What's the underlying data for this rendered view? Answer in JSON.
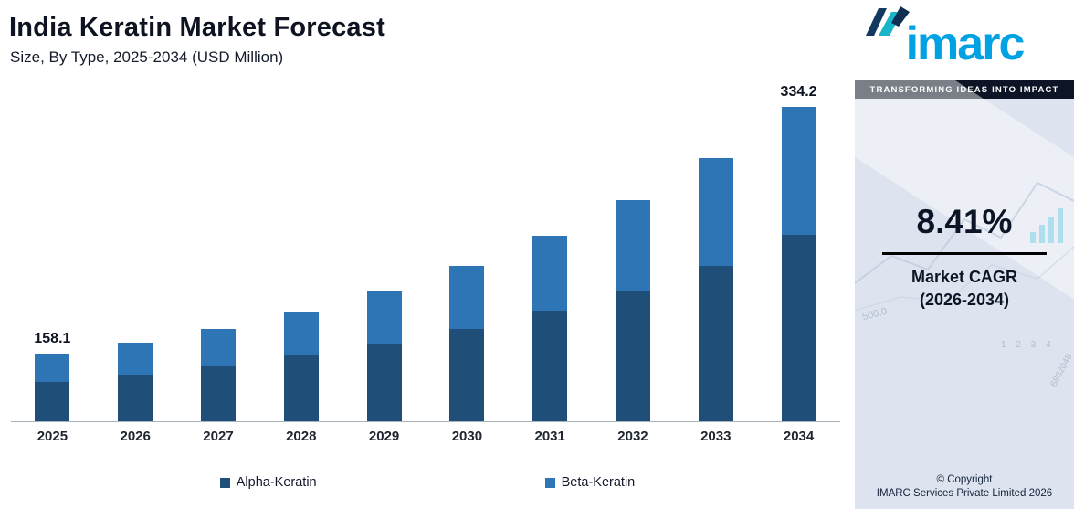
{
  "header": {
    "title": "India Keratin Market Forecast",
    "subtitle": "Size, By Type, 2025-2034 (USD Million)"
  },
  "chart_data": {
    "type": "bar",
    "stacked": true,
    "title": "India Keratin Market Forecast",
    "subtitle": "Size, By Type, 2025-2034 (USD Million)",
    "unit": "USD Million",
    "categories": [
      "2025",
      "2026",
      "2027",
      "2028",
      "2029",
      "2030",
      "2031",
      "2032",
      "2033",
      "2034"
    ],
    "series": [
      {
        "name": "Alpha-Keratin",
        "color": "#1f4e79",
        "values": [
          138.0,
          143.2,
          149.1,
          156.8,
          165.2,
          175.6,
          189.2,
          203.4,
          220.9,
          242.9
        ]
      },
      {
        "name": "Beta-Keratin",
        "color": "#2e75b6",
        "values": [
          20.1,
          22.9,
          26.9,
          31.6,
          38.0,
          45.3,
          53.6,
          64.7,
          77.0,
          91.3
        ]
      }
    ],
    "totals": [
      158.1,
      166.1,
      176.0,
      188.4,
      203.2,
      220.9,
      242.8,
      268.1,
      297.9,
      334.2
    ],
    "value_labels": [
      "158.1",
      "",
      "",
      "",
      "",
      "",
      "",
      "",
      "",
      "334.2"
    ],
    "ylim": [
      110,
      335
    ],
    "grid": false,
    "legend_position": "bottom",
    "axis_note": "y-axis hidden; only first and last bar totals labeled; intermediate values estimated from bar heights"
  },
  "sidebar": {
    "logo_text": "imarc",
    "tagline": "TRANSFORMING IDEAS INTO IMPACT",
    "cagr_value": "8.41%",
    "cagr_label_line1": "Market CAGR",
    "cagr_label_line2": "(2026-2034)",
    "copyright_line1": "© Copyright",
    "copyright_line2": "IMARC Services Private Limited 2026",
    "watermarks": [
      "500.0",
      "1 2 3 4",
      "6862048"
    ]
  },
  "colors": {
    "alpha_keratin": "#1f4e79",
    "beta_keratin": "#2e75b6",
    "logo_blue": "#00a2e3",
    "sidebar_background": "#dde4ef",
    "tagline_background": "#0d1426",
    "cagr_underline": "#000000"
  }
}
